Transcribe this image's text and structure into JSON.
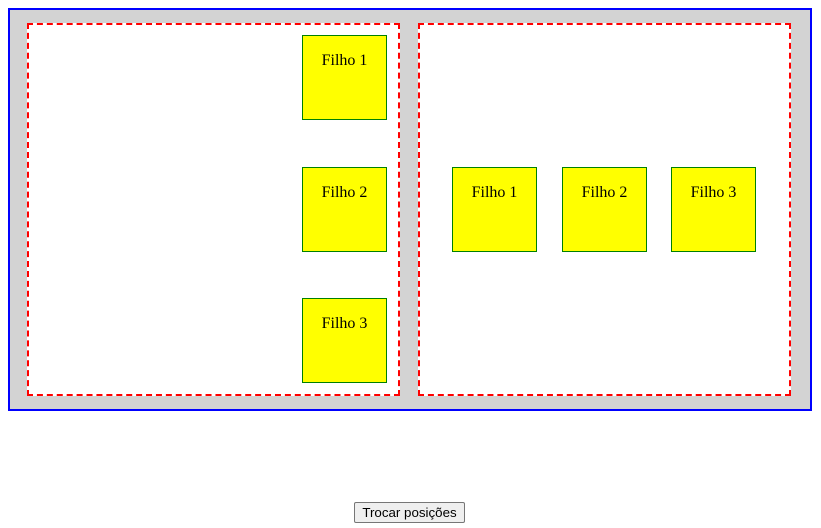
{
  "containers": {
    "left": {
      "children": [
        "Filho 1",
        "Filho 2",
        "Filho 3"
      ]
    },
    "right": {
      "children": [
        "Filho 1",
        "Filho 2",
        "Filho 3"
      ]
    }
  },
  "button": {
    "label": "Trocar posições"
  },
  "colors": {
    "outer_background": "#d3d3d3",
    "outer_border": "#0000ff",
    "panel_border": "#ff0000",
    "child_background": "#ffff00",
    "child_border": "#008000"
  }
}
